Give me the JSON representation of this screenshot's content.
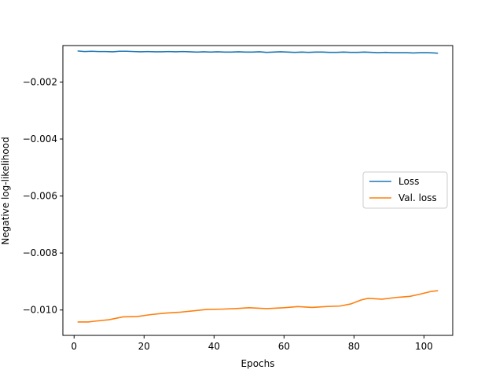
{
  "chart_data": {
    "type": "line",
    "title": "",
    "xlabel": "Epochs",
    "ylabel": "Negative log-likelihood",
    "xlim": [
      -3.2,
      108.2
    ],
    "ylim": [
      -0.01089,
      -0.00072
    ],
    "xticks": [
      0,
      20,
      40,
      60,
      80,
      100
    ],
    "xtick_labels": [
      "0",
      "20",
      "40",
      "60",
      "80",
      "100"
    ],
    "yticks": [
      -0.002,
      -0.004,
      -0.006,
      -0.008,
      -0.01
    ],
    "ytick_labels": [
      "−0.002",
      "−0.004",
      "−0.006",
      "−0.008",
      "−0.010"
    ],
    "grid": false,
    "legend_position": "center-right",
    "series": [
      {
        "name": "Loss",
        "color": "#1f77b4",
        "points": [
          [
            1,
            -0.00091
          ],
          [
            3,
            -0.00093
          ],
          [
            5,
            -0.00092
          ],
          [
            7,
            -0.00093
          ],
          [
            9,
            -0.00093
          ],
          [
            11,
            -0.00094
          ],
          [
            13,
            -0.00092
          ],
          [
            15,
            -0.00092
          ],
          [
            17,
            -0.00093
          ],
          [
            19,
            -0.00094
          ],
          [
            21,
            -0.00093
          ],
          [
            23,
            -0.00094
          ],
          [
            25,
            -0.00094
          ],
          [
            27,
            -0.00093
          ],
          [
            29,
            -0.00094
          ],
          [
            31,
            -0.00093
          ],
          [
            33,
            -0.00094
          ],
          [
            35,
            -0.00095
          ],
          [
            37,
            -0.00094
          ],
          [
            39,
            -0.00095
          ],
          [
            41,
            -0.00094
          ],
          [
            43,
            -0.00095
          ],
          [
            45,
            -0.00095
          ],
          [
            47,
            -0.00094
          ],
          [
            49,
            -0.00095
          ],
          [
            51,
            -0.00095
          ],
          [
            53,
            -0.00094
          ],
          [
            55,
            -0.00096
          ],
          [
            57,
            -0.00095
          ],
          [
            59,
            -0.00094
          ],
          [
            61,
            -0.00095
          ],
          [
            63,
            -0.00096
          ],
          [
            65,
            -0.00095
          ],
          [
            67,
            -0.00096
          ],
          [
            69,
            -0.00095
          ],
          [
            71,
            -0.00095
          ],
          [
            73,
            -0.00096
          ],
          [
            75,
            -0.00096
          ],
          [
            77,
            -0.00095
          ],
          [
            79,
            -0.00096
          ],
          [
            81,
            -0.00096
          ],
          [
            83,
            -0.00095
          ],
          [
            85,
            -0.00096
          ],
          [
            87,
            -0.00097
          ],
          [
            89,
            -0.00096
          ],
          [
            91,
            -0.00097
          ],
          [
            93,
            -0.00097
          ],
          [
            95,
            -0.00097
          ],
          [
            97,
            -0.00098
          ],
          [
            99,
            -0.00097
          ],
          [
            101,
            -0.00097
          ],
          [
            103,
            -0.00098
          ],
          [
            104,
            -0.00099
          ]
        ]
      },
      {
        "name": "Val. loss",
        "color": "#ff7f0e",
        "points": [
          [
            1,
            -0.01042
          ],
          [
            4,
            -0.01042
          ],
          [
            6,
            -0.01039
          ],
          [
            10,
            -0.01034
          ],
          [
            14,
            -0.01024
          ],
          [
            18,
            -0.01023
          ],
          [
            22,
            -0.01016
          ],
          [
            26,
            -0.01011
          ],
          [
            30,
            -0.01008
          ],
          [
            34,
            -0.01003
          ],
          [
            38,
            -0.00998
          ],
          [
            42,
            -0.00997
          ],
          [
            46,
            -0.00995
          ],
          [
            50,
            -0.00992
          ],
          [
            55,
            -0.00995
          ],
          [
            60,
            -0.00992
          ],
          [
            64,
            -0.00988
          ],
          [
            68,
            -0.00991
          ],
          [
            72,
            -0.00988
          ],
          [
            76,
            -0.00986
          ],
          [
            79,
            -0.00979
          ],
          [
            82,
            -0.00965
          ],
          [
            84,
            -0.00959
          ],
          [
            88,
            -0.00962
          ],
          [
            92,
            -0.00956
          ],
          [
            96,
            -0.00952
          ],
          [
            99,
            -0.00944
          ],
          [
            102,
            -0.00935
          ],
          [
            104,
            -0.00932
          ]
        ]
      }
    ]
  }
}
